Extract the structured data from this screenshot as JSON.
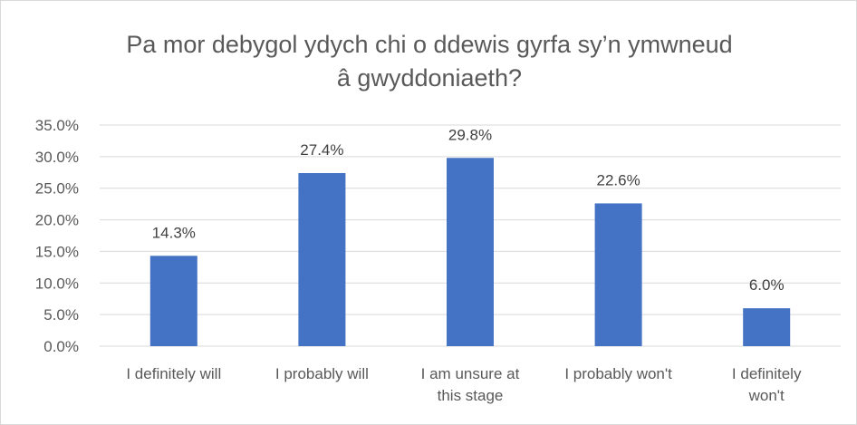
{
  "chart_data": {
    "type": "bar",
    "title_lines": [
      "Pa mor debygol ydych chi o ddewis gyrfa sy’n ymwneud",
      "â gwyddoniaeth?"
    ],
    "categories": [
      [
        "I definitely will"
      ],
      [
        "I probably will"
      ],
      [
        "I am unsure at",
        "this stage"
      ],
      [
        "I probably won't"
      ],
      [
        "I definitely",
        "won't"
      ]
    ],
    "values": [
      14.3,
      27.4,
      29.8,
      22.6,
      6.0
    ],
    "data_labels": [
      "14.3%",
      "27.4%",
      "29.8%",
      "22.6%",
      "6.0%"
    ],
    "ylim": [
      0,
      35
    ],
    "yticks": [
      0,
      5,
      10,
      15,
      20,
      25,
      30,
      35
    ],
    "ytick_labels": [
      "0.0%",
      "5.0%",
      "10.0%",
      "15.0%",
      "20.0%",
      "25.0%",
      "30.0%",
      "35.0%"
    ],
    "grid": true,
    "legend": "none",
    "colors": {
      "bar": "#4472c4",
      "grid": "#d9d9d9",
      "text": "#595959"
    }
  }
}
